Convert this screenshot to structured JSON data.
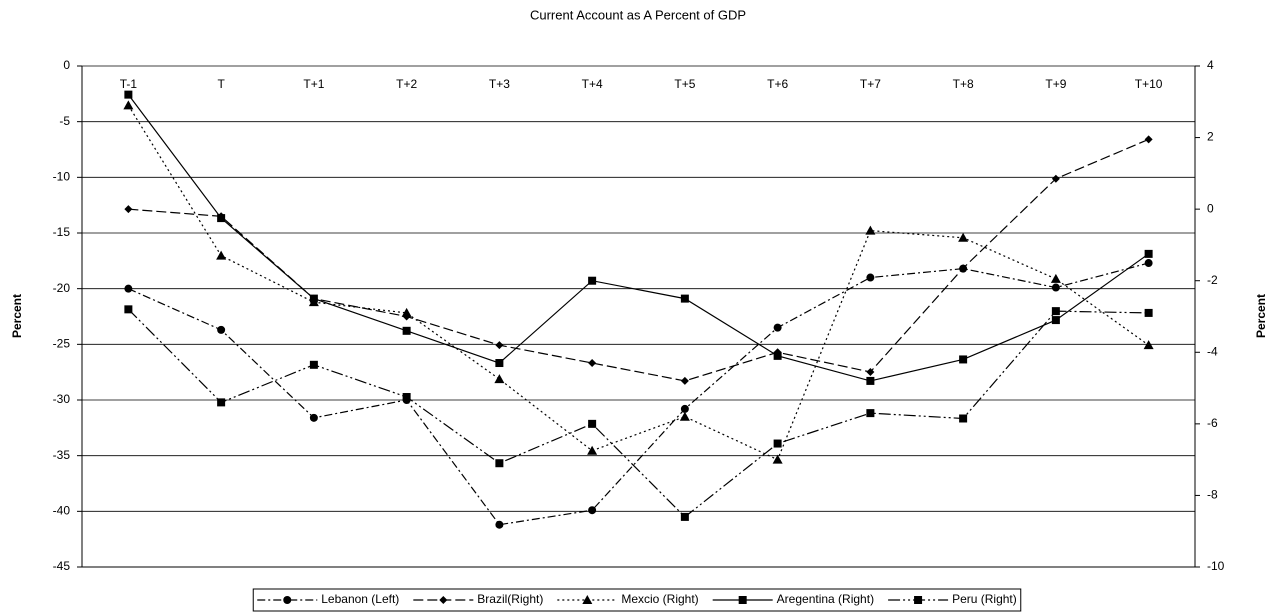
{
  "chart_data": {
    "type": "line",
    "title": "Current Account as A Percent of GDP",
    "y_label": "Percent",
    "y2_label": "Percent",
    "categories": [
      "T-1",
      "T",
      "T+1",
      "T+2",
      "T+3",
      "T+4",
      "T+5",
      "T+6",
      "T+7",
      "T+8",
      "T+9",
      "T+10"
    ],
    "ylim": [
      -45,
      0
    ],
    "yticks": [
      0,
      -5,
      -10,
      -15,
      -20,
      -25,
      -30,
      -35,
      -40,
      -45
    ],
    "y2lim": [
      -10,
      4
    ],
    "y2ticks": [
      4,
      2,
      0,
      -2,
      -4,
      -6,
      -8,
      -10
    ],
    "grid": true,
    "legend": "bottom",
    "series": [
      {
        "name": "Lebanon (Left)",
        "color": "#000000",
        "marker": "circle",
        "line_style": "dash-dot",
        "values": [
          -20.0,
          -23.7,
          -31.6,
          -30.0,
          -41.2,
          -39.9,
          -30.8,
          -23.5,
          -19.0,
          -18.2,
          -19.9,
          -17.7
        ]
      },
      {
        "name": "Brazil(Right)",
        "color": "#000000",
        "marker": "diamond",
        "line_style": "dash",
        "axis": "y2",
        "values": [
          0.0,
          -0.2,
          -2.5,
          -3.0,
          -3.8,
          -4.3,
          -4.8,
          -4.0,
          -4.55,
          -1.65,
          0.85,
          1.95
        ]
      },
      {
        "name": "Mexcio (Right)",
        "color": "#000000",
        "marker": "triangle",
        "line_style": "dot",
        "axis": "y2",
        "values": [
          2.9,
          -1.3,
          -2.6,
          -2.9,
          -4.75,
          -6.75,
          -5.8,
          -7.0,
          -0.6,
          -0.8,
          -1.95,
          -3.8
        ]
      },
      {
        "name": "Aregentina (Right)",
        "color": "#000000",
        "marker": "square",
        "line_style": "solid",
        "axis": "y2",
        "values": [
          3.2,
          -0.25,
          -2.5,
          -3.4,
          -4.3,
          -2.0,
          -2.5,
          -4.1,
          -4.8,
          -4.2,
          -3.1,
          -1.25
        ]
      },
      {
        "name": "Peru (Right)",
        "color": "#000000",
        "marker": "square",
        "line_style": "long-dash-dot-dot",
        "axis": "y2",
        "values": [
          -2.8,
          -5.4,
          -4.35,
          -5.25,
          -7.1,
          -6.0,
          -8.6,
          -6.55,
          -5.7,
          -5.85,
          -2.85,
          -2.9
        ]
      }
    ]
  }
}
